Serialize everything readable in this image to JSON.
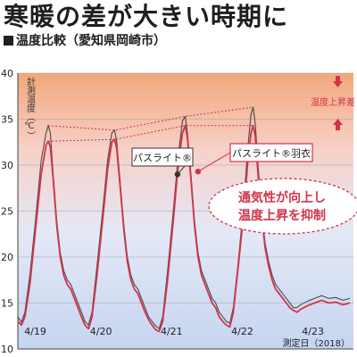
{
  "headline": "寒暖の差が大きい時期に",
  "chart_data": {
    "type": "line",
    "title": "温度比較（愛知県岡崎市）",
    "ylabel": "計測温度（℃）",
    "ylim": [
      10,
      40
    ],
    "xlim": [
      0,
      4.75
    ],
    "y_ticks": [
      10,
      15,
      20,
      25,
      30,
      35,
      40
    ],
    "x_ticks": [
      {
        "label": "4/19",
        "x": 0.07
      },
      {
        "label": "4/20",
        "x": 1.0
      },
      {
        "label": "4/21",
        "x": 2.0
      },
      {
        "label": "4/22",
        "x": 3.0
      },
      {
        "label": "4/23",
        "x": 4.0
      }
    ],
    "grid": "horizontal",
    "background": "vertical-gradient-orange-to-blue",
    "series": [
      {
        "name": "パスライト®",
        "color": "#4a4a4a",
        "points": [
          [
            0.0,
            13.5
          ],
          [
            0.05,
            12.9
          ],
          [
            0.1,
            14.0
          ],
          [
            0.17,
            18.0
          ],
          [
            0.25,
            24.0
          ],
          [
            0.33,
            30.5
          ],
          [
            0.4,
            33.5
          ],
          [
            0.43,
            34.3
          ],
          [
            0.46,
            33.5
          ],
          [
            0.5,
            29.0
          ],
          [
            0.55,
            24.0
          ],
          [
            0.6,
            20.5
          ],
          [
            0.65,
            18.5
          ],
          [
            0.7,
            17.5
          ],
          [
            0.75,
            17.0
          ],
          [
            0.8,
            16.0
          ],
          [
            0.85,
            15.0
          ],
          [
            0.9,
            14.0
          ],
          [
            0.95,
            13.0
          ],
          [
            1.0,
            12.6
          ],
          [
            1.05,
            14.0
          ],
          [
            1.12,
            19.0
          ],
          [
            1.2,
            25.0
          ],
          [
            1.27,
            30.5
          ],
          [
            1.33,
            33.5
          ],
          [
            1.37,
            33.8
          ],
          [
            1.4,
            32.5
          ],
          [
            1.45,
            28.0
          ],
          [
            1.5,
            23.5
          ],
          [
            1.55,
            20.0
          ],
          [
            1.6,
            18.0
          ],
          [
            1.65,
            17.0
          ],
          [
            1.7,
            16.5
          ],
          [
            1.75,
            15.5
          ],
          [
            1.8,
            14.5
          ],
          [
            1.85,
            13.5
          ],
          [
            1.9,
            13.0
          ],
          [
            1.95,
            12.5
          ],
          [
            2.0,
            12.2
          ],
          [
            2.05,
            13.5
          ],
          [
            2.12,
            18.5
          ],
          [
            2.2,
            25.0
          ],
          [
            2.27,
            31.0
          ],
          [
            2.33,
            34.8
          ],
          [
            2.37,
            35.3
          ],
          [
            2.4,
            33.5
          ],
          [
            2.45,
            29.0
          ],
          [
            2.5,
            24.0
          ],
          [
            2.55,
            20.5
          ],
          [
            2.6,
            18.5
          ],
          [
            2.65,
            17.5
          ],
          [
            2.7,
            16.5
          ],
          [
            2.75,
            15.5
          ],
          [
            2.8,
            15.0
          ],
          [
            2.85,
            14.0
          ],
          [
            2.9,
            13.5
          ],
          [
            2.95,
            13.0
          ],
          [
            3.0,
            12.8
          ],
          [
            3.05,
            14.5
          ],
          [
            3.12,
            19.5
          ],
          [
            3.2,
            26.0
          ],
          [
            3.25,
            31.5
          ],
          [
            3.3,
            35.5
          ],
          [
            3.33,
            36.3
          ],
          [
            3.36,
            34.5
          ],
          [
            3.4,
            30.0
          ],
          [
            3.45,
            25.0
          ],
          [
            3.5,
            21.5
          ],
          [
            3.55,
            19.5
          ],
          [
            3.6,
            18.0
          ],
          [
            3.65,
            17.0
          ],
          [
            3.7,
            16.5
          ],
          [
            3.75,
            16.0
          ],
          [
            3.8,
            15.5
          ],
          [
            3.85,
            15.0
          ],
          [
            3.9,
            14.5
          ],
          [
            3.95,
            14.5
          ],
          [
            4.0,
            14.8
          ],
          [
            4.1,
            15.2
          ],
          [
            4.2,
            15.5
          ],
          [
            4.3,
            15.8
          ],
          [
            4.4,
            15.5
          ],
          [
            4.5,
            15.6
          ],
          [
            4.6,
            15.3
          ],
          [
            4.7,
            15.5
          ]
        ]
      },
      {
        "name": "パスライト®羽衣",
        "color": "#d2334a",
        "points": [
          [
            0.0,
            13.0
          ],
          [
            0.05,
            12.6
          ],
          [
            0.1,
            13.5
          ],
          [
            0.17,
            17.0
          ],
          [
            0.25,
            23.0
          ],
          [
            0.33,
            29.0
          ],
          [
            0.4,
            32.2
          ],
          [
            0.43,
            32.6
          ],
          [
            0.46,
            32.0
          ],
          [
            0.5,
            28.5
          ],
          [
            0.55,
            23.5
          ],
          [
            0.6,
            20.0
          ],
          [
            0.65,
            18.0
          ],
          [
            0.7,
            17.0
          ],
          [
            0.75,
            16.5
          ],
          [
            0.8,
            15.5
          ],
          [
            0.85,
            14.5
          ],
          [
            0.9,
            13.5
          ],
          [
            0.95,
            12.6
          ],
          [
            1.0,
            12.2
          ],
          [
            1.05,
            13.5
          ],
          [
            1.12,
            18.0
          ],
          [
            1.2,
            24.0
          ],
          [
            1.27,
            29.5
          ],
          [
            1.33,
            32.5
          ],
          [
            1.37,
            32.8
          ],
          [
            1.4,
            31.8
          ],
          [
            1.45,
            27.5
          ],
          [
            1.5,
            23.0
          ],
          [
            1.55,
            19.5
          ],
          [
            1.6,
            17.5
          ],
          [
            1.65,
            16.5
          ],
          [
            1.7,
            16.0
          ],
          [
            1.75,
            15.0
          ],
          [
            1.8,
            14.0
          ],
          [
            1.85,
            13.2
          ],
          [
            1.9,
            12.6
          ],
          [
            1.95,
            12.1
          ],
          [
            2.0,
            11.9
          ],
          [
            2.05,
            13.0
          ],
          [
            2.12,
            17.5
          ],
          [
            2.2,
            24.0
          ],
          [
            2.27,
            30.0
          ],
          [
            2.33,
            33.5
          ],
          [
            2.37,
            34.3
          ],
          [
            2.4,
            33.0
          ],
          [
            2.45,
            28.5
          ],
          [
            2.5,
            23.5
          ],
          [
            2.55,
            20.0
          ],
          [
            2.6,
            18.0
          ],
          [
            2.65,
            17.0
          ],
          [
            2.7,
            16.0
          ],
          [
            2.75,
            15.0
          ],
          [
            2.8,
            14.5
          ],
          [
            2.85,
            13.5
          ],
          [
            2.9,
            13.0
          ],
          [
            2.95,
            12.6
          ],
          [
            3.0,
            12.4
          ],
          [
            3.05,
            14.0
          ],
          [
            3.12,
            19.0
          ],
          [
            3.2,
            25.0
          ],
          [
            3.25,
            30.0
          ],
          [
            3.3,
            33.5
          ],
          [
            3.33,
            34.3
          ],
          [
            3.36,
            33.2
          ],
          [
            3.4,
            29.0
          ],
          [
            3.45,
            24.5
          ],
          [
            3.5,
            21.0
          ],
          [
            3.55,
            19.0
          ],
          [
            3.6,
            17.5
          ],
          [
            3.65,
            16.5
          ],
          [
            3.7,
            16.0
          ],
          [
            3.75,
            15.5
          ],
          [
            3.8,
            15.0
          ],
          [
            3.85,
            14.5
          ],
          [
            3.9,
            14.2
          ],
          [
            3.95,
            14.0
          ],
          [
            4.0,
            14.3
          ],
          [
            4.1,
            14.7
          ],
          [
            4.2,
            15.0
          ],
          [
            4.3,
            15.3
          ],
          [
            4.4,
            15.0
          ],
          [
            4.5,
            15.1
          ],
          [
            4.6,
            14.8
          ],
          [
            4.7,
            15.0
          ]
        ]
      }
    ],
    "peak_guides": {
      "upper": [
        [
          0.43,
          34.3
        ],
        [
          1.37,
          33.8
        ],
        [
          2.37,
          35.3
        ],
        [
          3.33,
          36.3
        ]
      ],
      "lower": [
        [
          0.43,
          32.6
        ],
        [
          1.37,
          32.8
        ],
        [
          2.37,
          34.3
        ],
        [
          3.33,
          34.3
        ]
      ]
    },
    "annotations": {
      "legend_label_1": "パスライト®",
      "legend_label_2": "パスライト®羽衣",
      "legend_point_1": [
        2.26,
        29.0
      ],
      "legend_point_2": [
        2.55,
        29.3
      ],
      "rise_gap_label": "温度上昇差",
      "callout_line_1": "通気性が向上し",
      "callout_line_2": "温度上昇を抑制",
      "source_note": "測定日（2018）"
    }
  }
}
